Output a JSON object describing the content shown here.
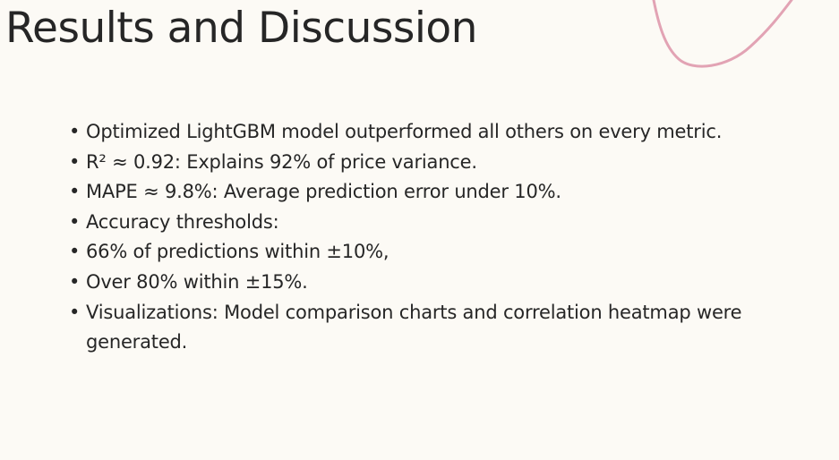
{
  "slide": {
    "title": "Results and Discussion",
    "bullet_glyph": "•",
    "bullets": [
      "Optimized LightGBM model outperformed all others on every metric.",
      "R² ≈ 0.92: Explains 92% of price variance.",
      "MAPE ≈ 9.8%: Average prediction error under 10%.",
      "Accuracy thresholds:",
      "66% of predictions within ±10%,",
      "Over 80% within ±15%.",
      "Visualizations: Model comparison charts and correlation heatmap were generated."
    ]
  },
  "colors": {
    "background": "#fcfaf5",
    "text": "#262626",
    "accent_curve": "#e2a3b4"
  },
  "icons": {
    "decoration": "curved-line-decoration"
  }
}
